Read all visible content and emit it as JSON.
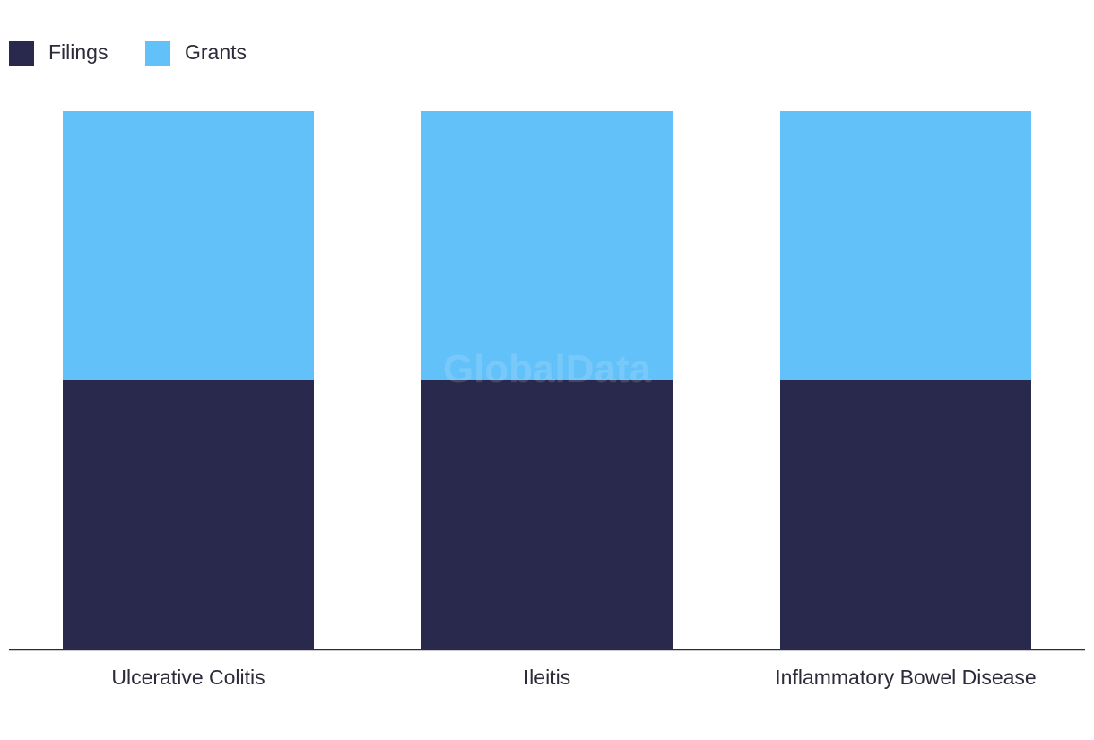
{
  "chart_data": {
    "type": "bar",
    "stacked": true,
    "categories": [
      "Ulcerative Colitis",
      "Ileitis",
      "Inflammatory Bowel Disease"
    ],
    "series": [
      {
        "name": "Filings",
        "values": [
          1,
          1,
          1
        ],
        "color": "#28294c"
      },
      {
        "name": "Grants",
        "values": [
          1,
          1,
          1
        ],
        "color": "#62c1f9"
      }
    ],
    "ylim": [
      0,
      2
    ],
    "grid": false,
    "legend": "top-left",
    "watermark": "GlobalData"
  }
}
